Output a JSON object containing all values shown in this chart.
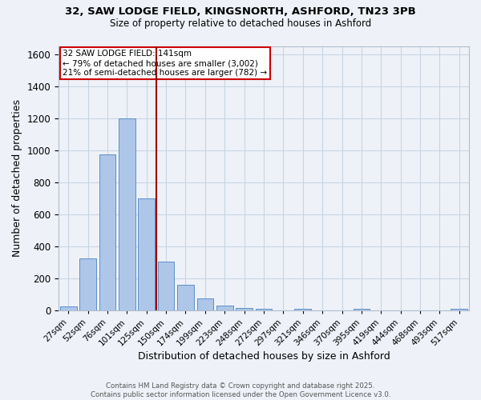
{
  "title_line1": "32, SAW LODGE FIELD, KINGSNORTH, ASHFORD, TN23 3PB",
  "title_line2": "Size of property relative to detached houses in Ashford",
  "xlabel": "Distribution of detached houses by size in Ashford",
  "ylabel": "Number of detached properties",
  "categories": [
    "27sqm",
    "52sqm",
    "76sqm",
    "101sqm",
    "125sqm",
    "150sqm",
    "174sqm",
    "199sqm",
    "223sqm",
    "248sqm",
    "272sqm",
    "297sqm",
    "321sqm",
    "346sqm",
    "370sqm",
    "395sqm",
    "419sqm",
    "444sqm",
    "468sqm",
    "493sqm",
    "517sqm"
  ],
  "values": [
    25,
    325,
    975,
    1200,
    700,
    305,
    160,
    75,
    30,
    15,
    10,
    0,
    10,
    0,
    0,
    10,
    0,
    0,
    0,
    0,
    10
  ],
  "bar_color": "#aec6e8",
  "bar_edge_color": "#5b8fc9",
  "grid_color": "#c8d4e3",
  "background_color": "#eef2f8",
  "vline_x_index": 4.5,
  "vline_color": "#990000",
  "annotation_text": "32 SAW LODGE FIELD: 141sqm\n← 79% of detached houses are smaller (3,002)\n21% of semi-detached houses are larger (782) →",
  "annotation_box_facecolor": "#ffffff",
  "annotation_box_edgecolor": "#cc0000",
  "ylim": [
    0,
    1650
  ],
  "yticks": [
    0,
    200,
    400,
    600,
    800,
    1000,
    1200,
    1400,
    1600
  ],
  "footer_line1": "Contains HM Land Registry data © Crown copyright and database right 2025.",
  "footer_line2": "Contains public sector information licensed under the Open Government Licence v3.0."
}
